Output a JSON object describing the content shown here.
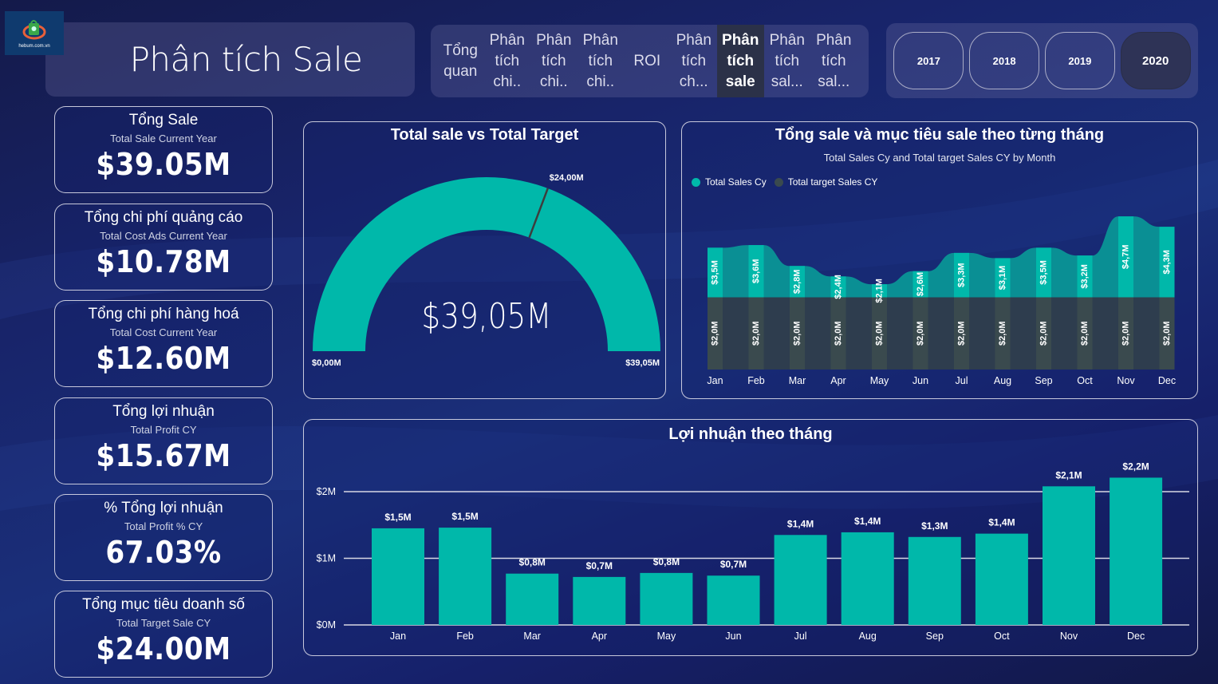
{
  "logo": {
    "text": "hebum.com.vn"
  },
  "header": {
    "title": "Phân tích Sale"
  },
  "nav": {
    "items": [
      {
        "label": "Tổng\nquan",
        "active": false
      },
      {
        "label": "Phân\ntích\nchi..",
        "active": false
      },
      {
        "label": "Phân\ntích\nchi..",
        "active": false
      },
      {
        "label": "Phân\ntích\nchi..",
        "active": false
      },
      {
        "label": "ROI",
        "active": false
      },
      {
        "label": "Phân\ntích\nch...",
        "active": false
      },
      {
        "label": "Phân\ntích\nsale",
        "active": true
      },
      {
        "label": "Phân\ntích\nsal...",
        "active": false
      },
      {
        "label": "Phân\ntích\nsal...",
        "active": false
      }
    ]
  },
  "years": {
    "options": [
      "2017",
      "2018",
      "2019",
      "2020"
    ],
    "selected": "2020"
  },
  "kpis": [
    {
      "title": "Tổng Sale",
      "subtitle": "Total Sale Current Year",
      "value": "$39.05M"
    },
    {
      "title": "Tổng chi phí quảng cáo",
      "subtitle": "Total Cost Ads Current Year",
      "value": "$10.78M"
    },
    {
      "title": "Tổng chi phí hàng hoá",
      "subtitle": "Total Cost Current Year",
      "value": "$12.60M"
    },
    {
      "title": "Tổng lợi nhuận",
      "subtitle": "Total Profit CY",
      "value": "$15.67M"
    },
    {
      "title": "% Tổng lợi nhuận",
      "subtitle": "Total Profit % CY",
      "value": "67.03%"
    },
    {
      "title": "Tổng mục tiêu doanh số",
      "subtitle": "Total Target Sale CY",
      "value": "$24.00M"
    }
  ],
  "colors": {
    "teal": "#00b8aa",
    "teal_dark": "#0a8f94",
    "target": "#3a4a4e",
    "target_dark": "#2e3d4e",
    "needle": "#3d3d3d"
  },
  "chart_data": [
    {
      "type": "gauge",
      "title": "Total sale vs Total Target",
      "value": 39.05,
      "value_label": "$39,05M",
      "min": 0,
      "max": 39.05,
      "min_label": "$0,00M",
      "max_label": "$39,05M",
      "target": 24.0,
      "target_label": "$24,00M"
    },
    {
      "type": "ribbon",
      "title": "Tổng sale và mục tiêu sale theo từng tháng",
      "subtitle": "Total Sales Cy and Total target Sales CY by Month",
      "legend": [
        "Total Sales Cy",
        "Total target Sales CY"
      ],
      "legend_position": "top-left",
      "categories": [
        "Jan",
        "Feb",
        "Mar",
        "Apr",
        "May",
        "Jun",
        "Jul",
        "Aug",
        "Sep",
        "Oct",
        "Nov",
        "Dec"
      ],
      "series": [
        {
          "name": "Total target Sales CY",
          "values": [
            2.0,
            2.0,
            2.0,
            2.0,
            2.0,
            2.0,
            2.0,
            2.0,
            2.0,
            2.0,
            2.0,
            2.0
          ],
          "labels": [
            "$2,0M",
            "$2,0M",
            "$2,0M",
            "$2,0M",
            "$2,0M",
            "$2,0M",
            "$2,0M",
            "$2,0M",
            "$2,0M",
            "$2,0M",
            "$2,0M",
            "$2,0M"
          ]
        },
        {
          "name": "Total Sales Cy",
          "values": [
            3.5,
            3.6,
            2.8,
            2.4,
            2.1,
            2.6,
            3.3,
            3.1,
            3.5,
            3.2,
            4.7,
            4.3
          ],
          "labels": [
            "$3,5M",
            "$3,6M",
            "$2,8M",
            "$2,4M",
            "$2,1M",
            "$2,6M",
            "$3,3M",
            "$3,1M",
            "$3,5M",
            "$3,2M",
            "$4,7M",
            "$4,3M"
          ]
        }
      ]
    },
    {
      "type": "bar",
      "title": "Lợi nhuận theo tháng",
      "categories": [
        "Jan",
        "Feb",
        "Mar",
        "Apr",
        "May",
        "Jun",
        "Jul",
        "Aug",
        "Sep",
        "Oct",
        "Nov",
        "Dec"
      ],
      "values": [
        1.45,
        1.46,
        0.77,
        0.72,
        0.78,
        0.74,
        1.35,
        1.39,
        1.32,
        1.37,
        2.08,
        2.21
      ],
      "labels": [
        "$1,5M",
        "$1,5M",
        "$0,8M",
        "$0,7M",
        "$0,8M",
        "$0,7M",
        "$1,4M",
        "$1,4M",
        "$1,3M",
        "$1,4M",
        "$2,1M",
        "$2,2M"
      ],
      "yticks": [
        0,
        1,
        2
      ],
      "ytick_labels": [
        "$0M",
        "$1M",
        "$2M"
      ],
      "ylim": [
        0,
        2.35
      ],
      "grid": true
    }
  ]
}
